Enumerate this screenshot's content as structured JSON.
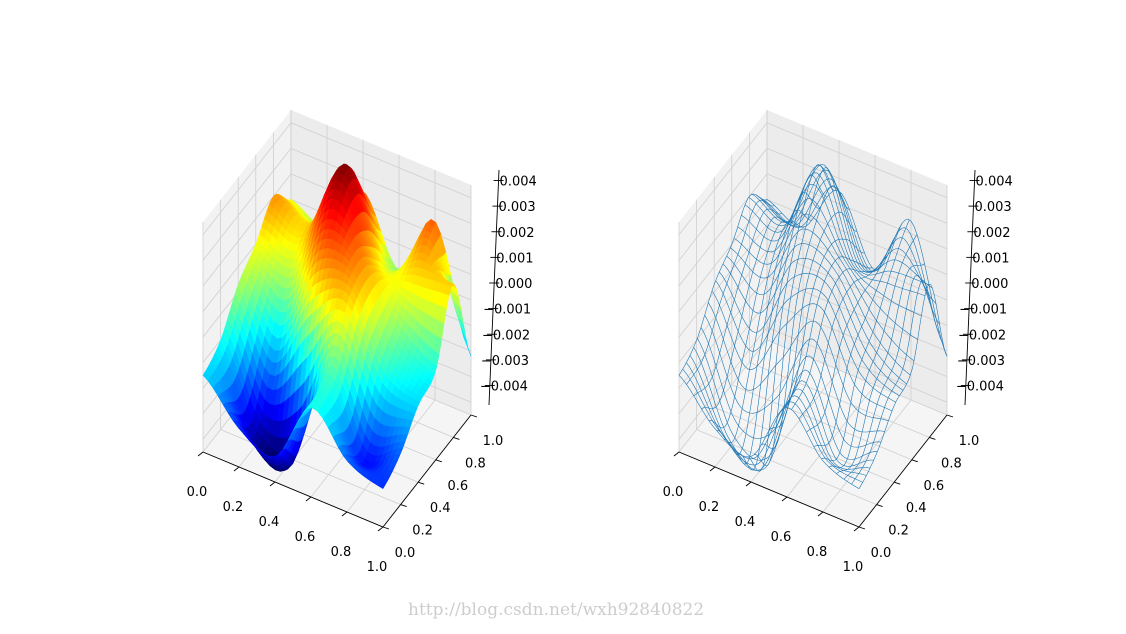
{
  "watermark": "http://blog.csdn.net/wxh92840822",
  "chart_data": [
    {
      "type": "surface",
      "style": "filled surface",
      "colormap": "jet",
      "view": {
        "elev": 30,
        "azim": -60
      },
      "xlim": [
        0,
        1
      ],
      "ylim": [
        0,
        1
      ],
      "zlim": [
        -0.0045,
        0.0045
      ],
      "x_ticks": [
        0,
        0.2,
        0.4,
        0.6,
        0.8,
        1.0
      ],
      "x_tick_labels": [
        "0.0",
        "0.2",
        "0.4",
        "0.6",
        "0.8",
        "1.0"
      ],
      "y_ticks": [
        0,
        0.2,
        0.4,
        0.6,
        0.8,
        1.0
      ],
      "y_tick_labels": [
        "0.0",
        "0.2",
        "0.4",
        "0.6",
        "0.8",
        "1.0"
      ],
      "z_ticks": [
        0.004,
        0.003,
        0.002,
        0.001,
        0.0,
        -0.001,
        -0.002,
        -0.003,
        -0.004
      ],
      "z_tick_labels": [
        "0.004",
        "0.003",
        "0.002",
        "0.001",
        "0.000",
        "−0.001",
        "−0.002",
        "−0.003",
        "−0.004"
      ],
      "grid": true,
      "grid_x": [
        0,
        0.2,
        0.4,
        0.6,
        0.8,
        1.0
      ],
      "grid_y": [
        0,
        0.2,
        0.4,
        0.6,
        0.8,
        1.0
      ],
      "z": [
        [
          -0.0015,
          -0.003,
          -0.0035,
          -0.001,
          -0.0025,
          -0.003
        ],
        [
          -0.001,
          -0.0042,
          -0.0045,
          -0.0005,
          -0.0032,
          -0.0025
        ],
        [
          0.0003,
          -0.002,
          0.0005,
          0.0015,
          -0.001,
          -0.0015
        ],
        [
          0.001,
          0.0005,
          0.003,
          0.002,
          0.0,
          -0.001
        ],
        [
          0.002,
          0.0015,
          0.0044,
          0.001,
          0.0015,
          0.0015
        ],
        [
          0.001,
          0.0005,
          0.0025,
          0.0,
          0.0025,
          -0.0022
        ]
      ]
    },
    {
      "type": "wireframe",
      "style": "wireframe",
      "color": "#1f77b4",
      "view": {
        "elev": 30,
        "azim": -60
      },
      "xlim": [
        0,
        1
      ],
      "ylim": [
        0,
        1
      ],
      "zlim": [
        -0.0045,
        0.0045
      ],
      "x_ticks": [
        0,
        0.2,
        0.4,
        0.6,
        0.8,
        1.0
      ],
      "x_tick_labels": [
        "0.0",
        "0.2",
        "0.4",
        "0.6",
        "0.8",
        "1.0"
      ],
      "y_ticks": [
        0,
        0.2,
        0.4,
        0.6,
        0.8,
        1.0
      ],
      "y_tick_labels": [
        "0.0",
        "0.2",
        "0.4",
        "0.6",
        "0.8",
        "1.0"
      ],
      "z_ticks": [
        0.004,
        0.003,
        0.002,
        0.001,
        0.0,
        -0.001,
        -0.002,
        -0.003,
        -0.004
      ],
      "z_tick_labels": [
        "0.004",
        "0.003",
        "0.002",
        "0.001",
        "0.000",
        "−0.001",
        "−0.002",
        "−0.003",
        "−0.004"
      ],
      "grid": true,
      "grid_x": [
        0,
        0.2,
        0.4,
        0.6,
        0.8,
        1.0
      ],
      "grid_y": [
        0,
        0.2,
        0.4,
        0.6,
        0.8,
        1.0
      ],
      "z": [
        [
          -0.0015,
          -0.003,
          -0.0035,
          -0.001,
          -0.0025,
          -0.003
        ],
        [
          -0.001,
          -0.0042,
          -0.0045,
          -0.0005,
          -0.0032,
          -0.0025
        ],
        [
          0.0003,
          -0.002,
          0.0005,
          0.0015,
          -0.001,
          -0.0015
        ],
        [
          0.001,
          0.0005,
          0.003,
          0.002,
          0.0,
          -0.001
        ],
        [
          0.002,
          0.0015,
          0.0044,
          0.001,
          0.0015,
          0.0015
        ],
        [
          0.001,
          0.0005,
          0.0025,
          0.0,
          0.0025,
          -0.0022
        ]
      ]
    }
  ]
}
